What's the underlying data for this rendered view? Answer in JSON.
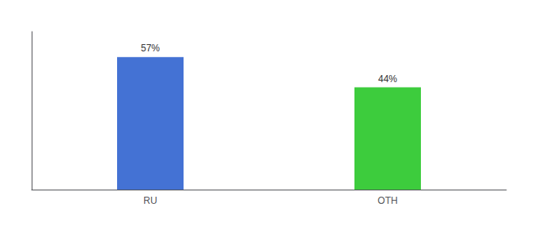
{
  "chart_data": {
    "type": "bar",
    "categories": [
      "RU",
      "OTH"
    ],
    "values": [
      57,
      44
    ],
    "value_labels": [
      "57%",
      "44%"
    ],
    "data_labels": true,
    "colors": [
      "#4472d4",
      "#3dcc3d"
    ],
    "ylim": [
      0,
      68
    ],
    "grid": false,
    "tick_labels": "x"
  }
}
